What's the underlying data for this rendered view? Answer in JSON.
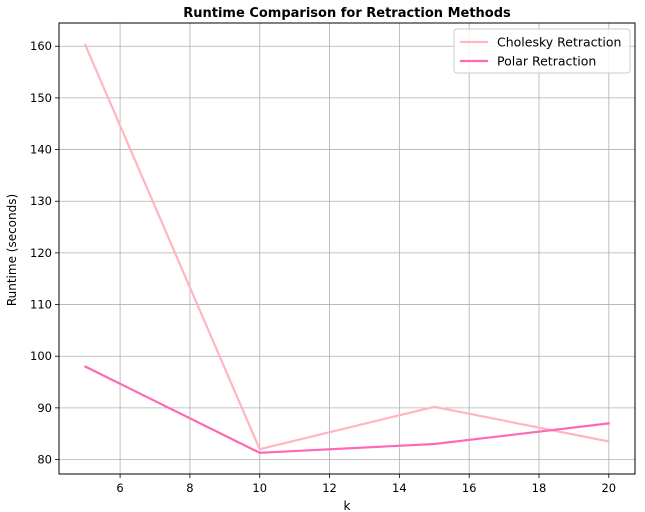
{
  "chart_data": {
    "type": "line",
    "title": "Runtime Comparison for Retraction Methods",
    "xlabel": "k",
    "ylabel": "Runtime (seconds)",
    "xlim": [
      4.25,
      20.75
    ],
    "ylim": [
      77.2,
      164.5
    ],
    "xticks": [
      6,
      8,
      10,
      12,
      14,
      16,
      18,
      20
    ],
    "yticks": [
      80,
      90,
      100,
      110,
      120,
      130,
      140,
      150,
      160
    ],
    "grid": true,
    "legend_position": "top-right",
    "x": [
      5,
      10,
      15,
      20
    ],
    "series": [
      {
        "name": "Cholesky Retraction",
        "color": "#ffb6c1",
        "values": [
          160.3,
          82.0,
          90.2,
          83.5
        ]
      },
      {
        "name": "Polar Retraction",
        "color": "#ff69b4",
        "values": [
          98.0,
          81.3,
          83.0,
          87.0
        ]
      }
    ]
  }
}
